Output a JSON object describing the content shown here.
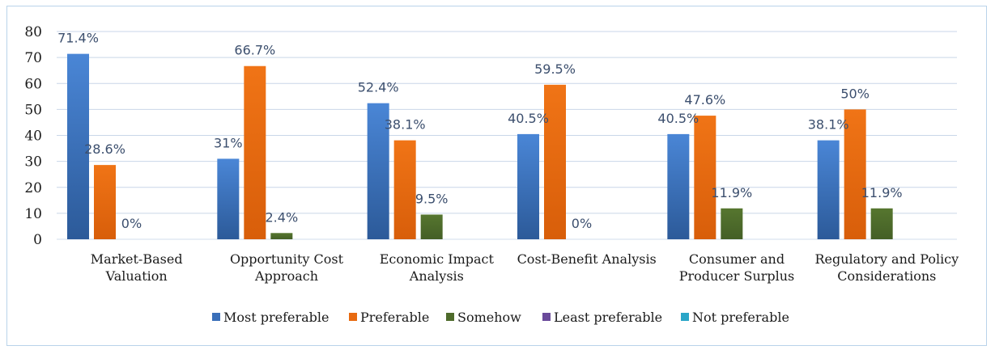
{
  "chart_data": {
    "type": "bar",
    "categories": [
      [
        "Market-Based",
        "Valuation"
      ],
      [
        "Opportunity Cost",
        "Approach"
      ],
      [
        "Economic Impact",
        "Analysis"
      ],
      [
        "Cost-Benefit Analysis"
      ],
      [
        "Consumer and",
        "Producer Surplus"
      ],
      [
        "Regulatory and Policy",
        "Considerations"
      ]
    ],
    "series": [
      {
        "name": "Most preferable",
        "color": "#3a6fb9",
        "values": [
          71.4,
          31,
          52.4,
          40.5,
          40.5,
          38.1
        ],
        "labels": [
          "71.4%",
          "31%",
          "52.4%",
          "40.5%",
          "40.5%",
          "38.1%"
        ]
      },
      {
        "name": "Preferable",
        "color": "#e86a10",
        "values": [
          28.6,
          66.7,
          38.1,
          59.5,
          47.6,
          50
        ],
        "labels": [
          "28.6%",
          "66.7%",
          "38.1%",
          "59.5%",
          "47.6%",
          "50%"
        ]
      },
      {
        "name": "Somehow",
        "color": "#4e6b2b",
        "values": [
          0,
          2.4,
          9.5,
          0,
          11.9,
          11.9
        ],
        "labels": [
          "0%",
          "2.4%",
          "9.5%",
          "0%",
          "11.9%",
          "11.9%"
        ]
      },
      {
        "name": "Least preferable",
        "color": "#6a4a9a",
        "values": [
          0,
          0,
          0,
          0,
          0,
          0
        ],
        "labels": [
          "",
          "",
          "",
          "",
          "",
          ""
        ]
      },
      {
        "name": "Not preferable",
        "color": "#2aa6c8",
        "values": [
          0,
          0,
          0,
          0,
          0,
          0
        ],
        "labels": [
          "",
          "",
          "",
          "",
          "",
          ""
        ]
      }
    ],
    "yticks": [
      "0",
      "10",
      "20",
      "30",
      "40",
      "50",
      "60",
      "70",
      "80"
    ],
    "ylim": [
      0,
      80
    ],
    "grid": true,
    "legend_position": "bottom"
  }
}
